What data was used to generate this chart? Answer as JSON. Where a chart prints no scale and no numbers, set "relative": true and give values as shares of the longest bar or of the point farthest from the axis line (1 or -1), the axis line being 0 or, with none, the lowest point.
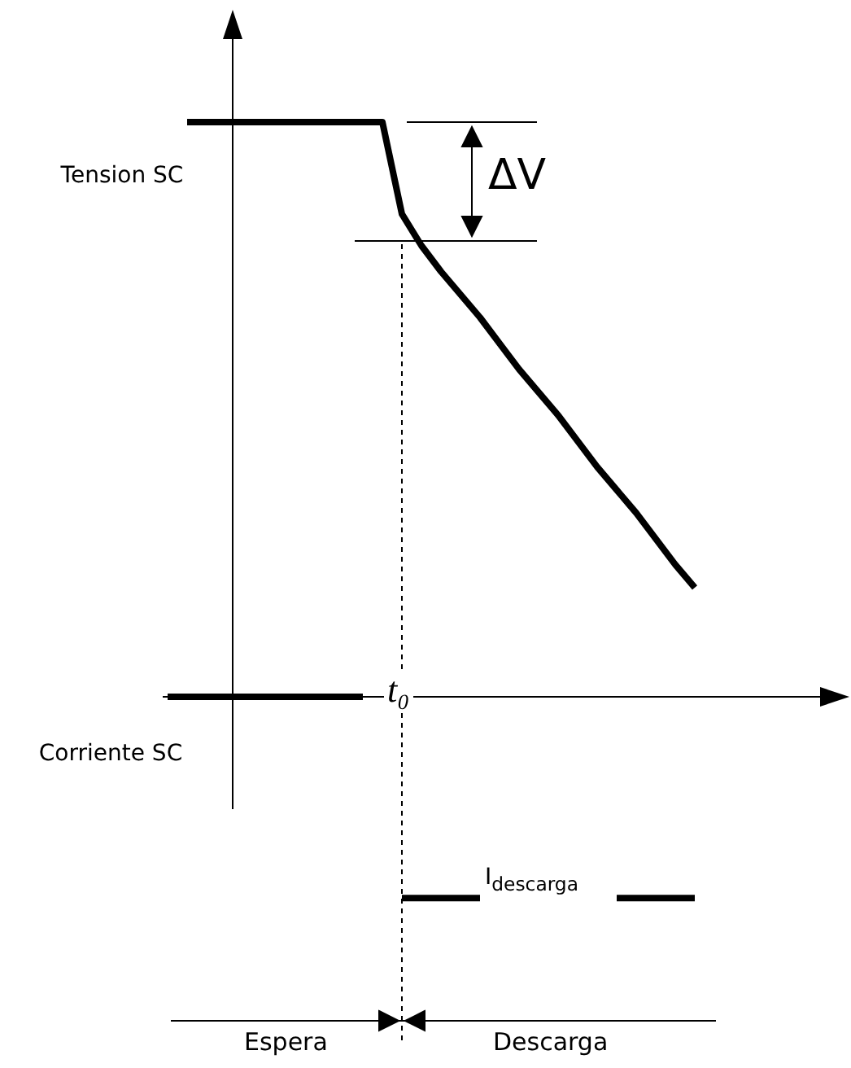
{
  "chart_data": {
    "type": "line",
    "relative": true,
    "categories": [
      null,
      null,
      null,
      null,
      null,
      null,
      null,
      null,
      null,
      null,
      null,
      null,
      null,
      null,
      null,
      null,
      null,
      null,
      null,
      null,
      null,
      null,
      null,
      null,
      null,
      null,
      null,
      null
    ],
    "series": [
      {
        "name": "Tension SC",
        "color": "#000000",
        "values": [
          null,
          1,
          1,
          1,
          1,
          1,
          1,
          1,
          1,
          1,
          1,
          1,
          0.84,
          0.785,
          0.74,
          0.7,
          0.66,
          0.615,
          0.57,
          0.53,
          0.49,
          0.445,
          0.4,
          0.36,
          0.32,
          0.275,
          0.23,
          0.19
        ]
      },
      {
        "name": "Corriente SC",
        "color": "#000000",
        "values": [
          0,
          0,
          0,
          0,
          0,
          0,
          0,
          0,
          0,
          0,
          0,
          null,
          -0.35,
          -0.35,
          -0.35,
          -0.35,
          -0.35,
          null,
          null,
          null,
          null,
          null,
          null,
          -0.35,
          -0.35,
          -0.35,
          -0.35,
          -0.35
        ]
      }
    ],
    "annotations": [
      "ΔV",
      "t₀",
      "I$_{descarga}$",
      "Espera",
      "Descarga"
    ]
  }
}
